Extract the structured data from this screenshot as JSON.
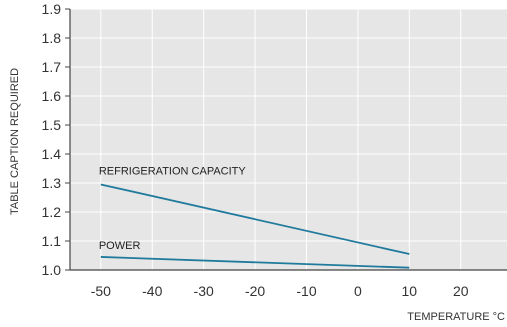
{
  "chart_data": {
    "type": "line",
    "xlabel": "TEMPERATURE °C",
    "ylabel": "TABLE CAPTION REQUIRED",
    "xlim": [
      -56,
      29
    ],
    "ylim": [
      1.0,
      1.9
    ],
    "x_ticks": [
      "-50",
      "-40",
      "-30",
      "-20",
      "-10",
      "0",
      "10",
      "20"
    ],
    "y_ticks": [
      "1.0",
      "1.1",
      "1.2",
      "1.3",
      "1.4",
      "1.5",
      "1.6",
      "1.7",
      "1.8",
      "1.9"
    ],
    "grid": true,
    "series": [
      {
        "name": "REFRIGERATION CAPACITY",
        "x": [
          -50,
          10
        ],
        "y": [
          1.295,
          1.055
        ]
      },
      {
        "name": "POWER",
        "x": [
          -50,
          10
        ],
        "y": [
          1.045,
          1.008
        ]
      }
    ],
    "colors": {
      "line": "#1f7a9c",
      "plot_bg": "#e6e6e6",
      "grid": "#ffffff",
      "axis": "#444444"
    }
  }
}
